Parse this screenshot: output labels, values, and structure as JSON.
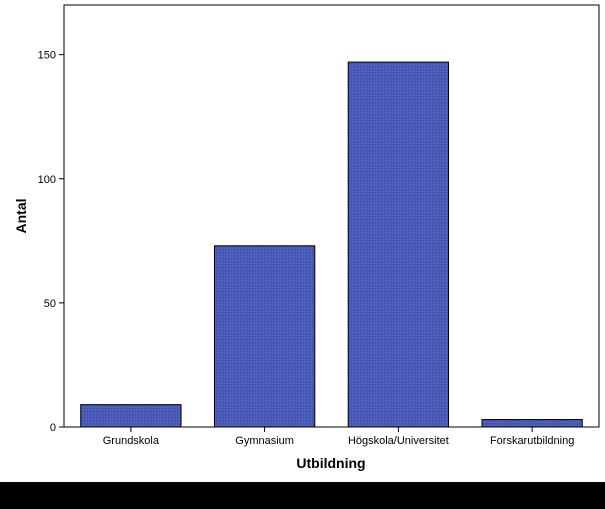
{
  "chart_data": {
    "type": "bar",
    "categories": [
      "Grundskola",
      "Gymnasium",
      "Högskola/Universitet",
      "Forskarutbildning"
    ],
    "values": [
      9,
      73,
      147,
      3
    ],
    "xlabel": "Utbildning",
    "ylabel": "Antal",
    "ylim": [
      0,
      170
    ],
    "yticks": [
      0,
      50,
      100,
      150
    ],
    "grid": false,
    "legend": "none",
    "colors": {
      "bar_fill": "#4a5bb8",
      "bar_stroke": "#000000",
      "axis": "#000000",
      "background": "#ffffff"
    }
  }
}
